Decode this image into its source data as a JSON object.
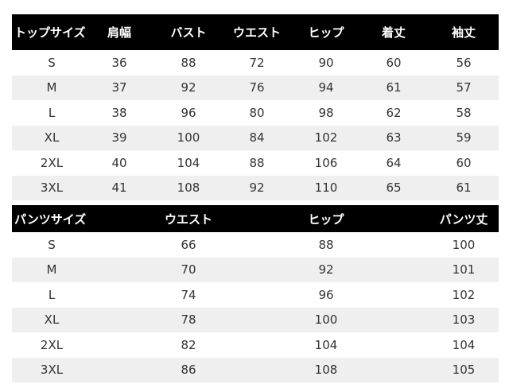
{
  "tops": {
    "headers": [
      "トップサイズ",
      "肩幅",
      "バスト",
      "ウエスト",
      "ヒップ",
      "着丈",
      "袖丈"
    ],
    "rows": [
      [
        "S",
        "36",
        "88",
        "72",
        "90",
        "60",
        "56"
      ],
      [
        "M",
        "37",
        "92",
        "76",
        "94",
        "61",
        "57"
      ],
      [
        "L",
        "38",
        "96",
        "80",
        "98",
        "62",
        "58"
      ],
      [
        "XL",
        "39",
        "100",
        "84",
        "102",
        "63",
        "59"
      ],
      [
        "2XL",
        "40",
        "104",
        "88",
        "106",
        "64",
        "60"
      ],
      [
        "3XL",
        "41",
        "108",
        "92",
        "110",
        "65",
        "61"
      ]
    ]
  },
  "pants": {
    "headers": [
      "パンツサイズ",
      "ウエスト",
      "ヒップ",
      "パンツ丈"
    ],
    "rows": [
      [
        "S",
        "66",
        "88",
        "100"
      ],
      [
        "M",
        "70",
        "92",
        "101"
      ],
      [
        "L",
        "74",
        "96",
        "102"
      ],
      [
        "XL",
        "78",
        "100",
        "103"
      ],
      [
        "2XL",
        "82",
        "104",
        "104"
      ],
      [
        "3XL",
        "86",
        "108",
        "105"
      ]
    ]
  },
  "colors": {
    "header_bg": "#000000",
    "header_text": "#ffffff",
    "stripe": "#efefef"
  }
}
